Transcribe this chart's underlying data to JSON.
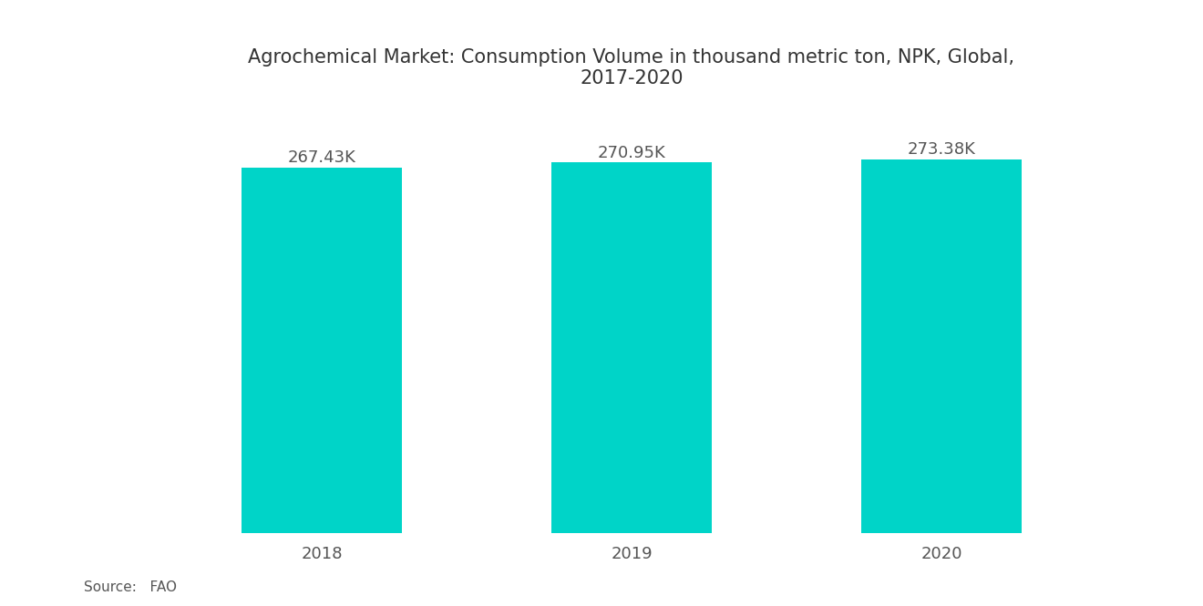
{
  "title": "Agrochemical Market: Consumption Volume in thousand metric ton, NPK, Global,\n2017-2020",
  "categories": [
    "2018",
    "2019",
    "2020"
  ],
  "values": [
    267.43,
    270.95,
    273.38
  ],
  "labels": [
    "267.43K",
    "270.95K",
    "273.38K"
  ],
  "bar_color": "#00D4C8",
  "background_color": "#ffffff",
  "title_fontsize": 15,
  "label_fontsize": 13,
  "tick_fontsize": 13,
  "source_text": "Source:   FAO",
  "ylim_min": 0,
  "ylim_max": 273.38
}
